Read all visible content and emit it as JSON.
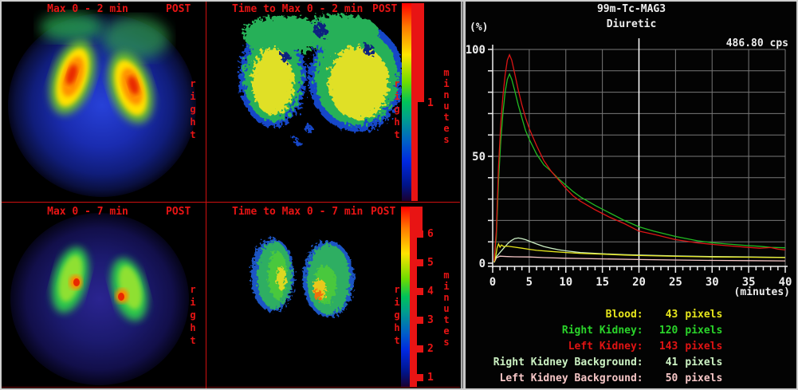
{
  "quadrants": [
    {
      "id": "max-0-2",
      "title": "Max 0 - 2 min",
      "side": "POST",
      "orientation": "right"
    },
    {
      "id": "time-to-max-0-2",
      "title": "Time to Max 0 - 2 min",
      "side": "POST",
      "orientation": "right",
      "scale": {
        "unit": "minutes",
        "ticks": [
          "1"
        ]
      }
    },
    {
      "id": "max-0-7",
      "title": "Max 0 - 7 min",
      "side": "POST",
      "orientation": "right"
    },
    {
      "id": "time-to-max-0-7",
      "title": "Time to Max 0 - 7 min",
      "side": "POST",
      "orientation": "right",
      "scale": {
        "unit": "minutes",
        "ticks": [
          "6",
          "5",
          "4",
          "3",
          "2",
          "1"
        ]
      }
    }
  ],
  "chart_data": {
    "type": "line",
    "title": "99m-Tc-MAG3",
    "subtitle": "Diuretic",
    "ylabel": "(%)",
    "xlabel": "(minutes)",
    "counts_label": "486.80 cps",
    "xlim": [
      0,
      40
    ],
    "ylim": [
      0,
      100
    ],
    "xticks": [
      0,
      5,
      10,
      15,
      20,
      25,
      30,
      35,
      40
    ],
    "yticks": [
      0,
      50,
      100
    ],
    "x_minor_tick_step": 1,
    "grid": true,
    "grid_x_step": 5,
    "grid_y_step": 10,
    "cursor_x": 20,
    "legend_position": "bottom-right",
    "series": [
      {
        "id": "left-kidney",
        "name": "Left Kidney",
        "color": "#dd1515",
        "x": [
          0.2,
          0.5,
          0.8,
          1.1,
          1.4,
          1.7,
          2.0,
          2.3,
          2.6,
          3.0,
          3.5,
          4.0,
          4.5,
          5,
          6,
          7,
          8,
          9,
          10,
          11,
          12,
          14,
          16,
          18,
          20,
          22,
          25,
          28,
          30,
          32,
          35,
          36.5,
          38,
          39,
          40
        ],
        "y": [
          1,
          15,
          45,
          65,
          78,
          88,
          95,
          97.5,
          95,
          89,
          81,
          74,
          68,
          63,
          55,
          48,
          43,
          39,
          35,
          31.5,
          29,
          25,
          21.5,
          18.5,
          15,
          13.5,
          11,
          9.5,
          8.8,
          8.2,
          7.4,
          7.0,
          7.3,
          6.6,
          6.2
        ]
      },
      {
        "id": "right-kidney",
        "name": "Right Kidney",
        "color": "#22bb22",
        "x": [
          0.2,
          0.5,
          0.8,
          1.1,
          1.4,
          1.7,
          2.0,
          2.3,
          2.6,
          3.0,
          3.5,
          4.0,
          4.5,
          5,
          6,
          7,
          8,
          9,
          10,
          11,
          12,
          14,
          16,
          18,
          20,
          22,
          25,
          28,
          30,
          32,
          35,
          36.5,
          38,
          39,
          40
        ],
        "y": [
          1,
          12,
          38,
          57,
          70,
          80,
          86,
          88.5,
          86,
          81,
          74,
          68,
          62,
          58,
          51,
          46,
          43,
          39.5,
          36.5,
          33.5,
          31,
          27,
          23.5,
          20,
          17,
          15,
          12.5,
          10.5,
          9.6,
          9.0,
          8.2,
          7.9,
          7.4,
          7.3,
          7.2
        ]
      },
      {
        "id": "blood",
        "name": "Blood",
        "color": "#e6e61c",
        "x": [
          0.2,
          0.4,
          0.6,
          0.8,
          1.0,
          1.2,
          1.5,
          2,
          3,
          4,
          5,
          6,
          8,
          10,
          12,
          15,
          18,
          20,
          25,
          30,
          35,
          40
        ],
        "y": [
          0.5,
          3,
          7,
          9,
          7.5,
          8.5,
          7.8,
          8,
          7.5,
          7,
          6.5,
          6,
          5.5,
          5,
          4.6,
          4.2,
          3.8,
          3.6,
          3.2,
          2.9,
          2.8,
          2.6
        ]
      },
      {
        "id": "right-kidney-background",
        "name": "Right Kidney Background",
        "color": "#cdf0c5",
        "x": [
          0.2,
          0.5,
          1,
          1.5,
          2,
          2.5,
          3,
          3.5,
          4,
          4.5,
          5,
          6,
          7,
          8,
          9,
          10,
          12,
          15,
          18,
          20,
          25,
          30,
          35,
          40
        ],
        "y": [
          0.5,
          3,
          5,
          7,
          9,
          10.5,
          11.5,
          11.8,
          11.5,
          11,
          10.3,
          9,
          7.8,
          7,
          6.3,
          5.8,
          5,
          4.4,
          4,
          3.8,
          3.4,
          3.1,
          2.9,
          2.7
        ]
      },
      {
        "id": "left-kidney-background",
        "name": "Left Kidney Background",
        "color": "#f5c6c6",
        "x": [
          0.2,
          0.5,
          1,
          2,
          3,
          5,
          7,
          10,
          12,
          15,
          20,
          25,
          30,
          35,
          40
        ],
        "y": [
          0.3,
          2.5,
          3.3,
          3.1,
          3.0,
          2.9,
          2.6,
          2.3,
          2.2,
          2.0,
          1.7,
          1.5,
          1.3,
          1.2,
          1.1
        ]
      }
    ]
  },
  "legend": {
    "rows": [
      {
        "label": "Blood:",
        "value": "43",
        "unit": "pixels",
        "color": "#e6e61c"
      },
      {
        "label": "Right Kidney:",
        "value": "120",
        "unit": "pixels",
        "color": "#2ad42a"
      },
      {
        "label": "Left Kidney:",
        "value": "143",
        "unit": "pixels",
        "color": "#e01313"
      },
      {
        "label": "Right Kidney Background:",
        "value": "41",
        "unit": "pixels",
        "color": "#cdf3c4"
      },
      {
        "label": "Left Kidney Background:",
        "value": "50",
        "unit": "pixels",
        "color": "#f6c6c6"
      }
    ]
  },
  "colors": {
    "annotation_red": "#e81414",
    "axis_white": "#eeeeee",
    "grid_gray": "#787878"
  }
}
